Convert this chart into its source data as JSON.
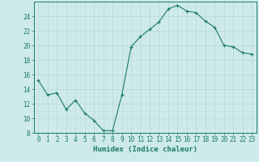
{
  "x": [
    0,
    1,
    2,
    3,
    4,
    5,
    6,
    7,
    8,
    9,
    10,
    11,
    12,
    13,
    14,
    15,
    16,
    17,
    18,
    19,
    20,
    21,
    22,
    23
  ],
  "y": [
    15.2,
    13.2,
    13.5,
    11.2,
    12.5,
    10.7,
    9.7,
    8.3,
    8.3,
    13.2,
    19.8,
    21.2,
    22.2,
    23.2,
    25.0,
    25.5,
    24.7,
    24.5,
    23.3,
    22.5,
    20.0,
    19.8,
    19.0,
    18.8
  ],
  "line_color": "#1a7a6a",
  "marker": "+",
  "marker_size": 3,
  "bg_color": "#ceeaea",
  "xlabel": "Humidex (Indice chaleur)",
  "xlim": [
    -0.5,
    23.5
  ],
  "ylim": [
    8,
    26
  ],
  "yticks": [
    8,
    10,
    12,
    14,
    16,
    18,
    20,
    22,
    24
  ],
  "xticks": [
    0,
    1,
    2,
    3,
    4,
    5,
    6,
    7,
    8,
    9,
    10,
    11,
    12,
    13,
    14,
    15,
    16,
    17,
    18,
    19,
    20,
    21,
    22,
    23
  ],
  "tick_color": "#1a7a6a",
  "label_fontsize": 5.5,
  "axis_fontsize": 6.5,
  "grid_major_color": "#b8d8d8",
  "grid_minor_color": "#c8e4e4"
}
